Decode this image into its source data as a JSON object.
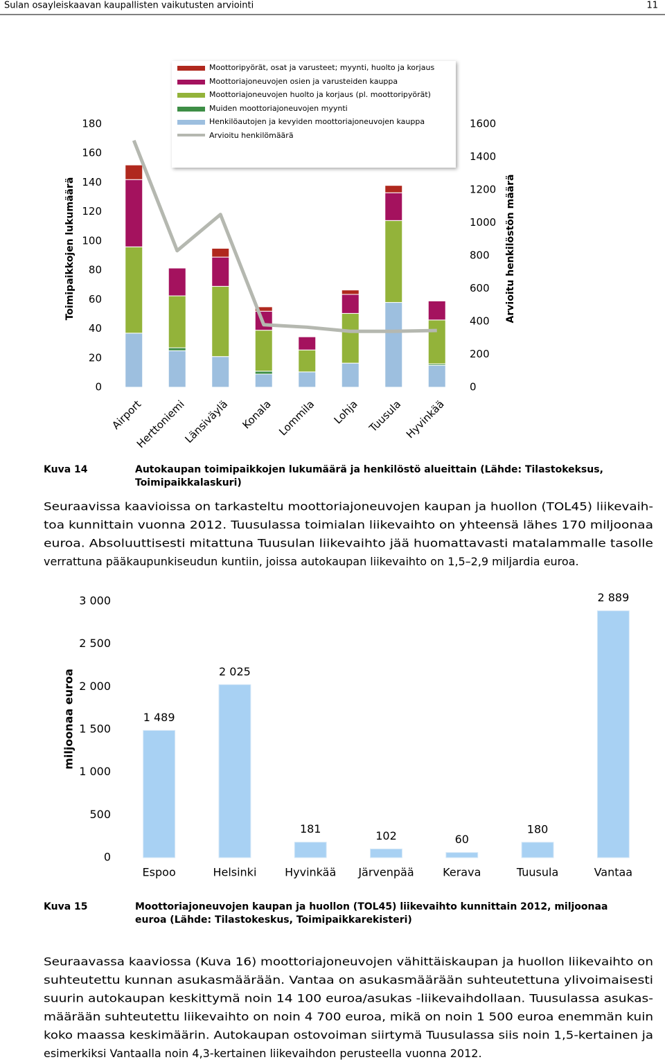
{
  "header": {
    "title": "Sulan osayleiskaavan kaupallisten vaikutusten arviointi",
    "page": "11"
  },
  "chart_data": [
    {
      "type": "stacked-bar-line",
      "categories": [
        "Airport",
        "Herttoniemi",
        "Länsiväylä",
        "Konala",
        "Lommila",
        "Lohja",
        "Tuusula",
        "Hyvinkää"
      ],
      "ylabel": "Toimipaikkojen lukumäärä",
      "y2label": "Arvioitu henkilöstön määrä",
      "ylim": [
        0,
        180
      ],
      "yticks": [
        0,
        20,
        40,
        60,
        80,
        100,
        120,
        140,
        160,
        180
      ],
      "y2lim": [
        0,
        1600
      ],
      "y2ticks": [
        0,
        200,
        400,
        600,
        800,
        1000,
        1200,
        1400,
        1600
      ],
      "series": [
        {
          "name": "Henkilöautojen ja kevyiden moottoriajoneuvojen kauppa",
          "color": "#9dbfdf",
          "values": [
            37,
            25,
            21,
            9,
            10.5,
            16.5,
            58,
            15
          ]
        },
        {
          "name": "Muiden moottoriajoneuvojen myynti",
          "color": "#3e8e46",
          "values": [
            0,
            2,
            0,
            2,
            0,
            0,
            0,
            1
          ]
        },
        {
          "name": "Moottoriajoneuvojen huolto ja korjaus (pl. moottoripyörät)",
          "color": "#93b33a",
          "values": [
            59,
            35.5,
            48,
            28,
            15,
            34,
            56,
            30
          ]
        },
        {
          "name": "Moottoriajoneuvojen osien ja varusteiden kauppa",
          "color": "#a4125e",
          "values": [
            46,
            19,
            20,
            13,
            9,
            13,
            19,
            13
          ]
        },
        {
          "name": "Moottoripyörät, osat ja varusteet; myynti, huolto ja korjaus",
          "color": "#b0281e",
          "values": [
            10,
            0,
            6,
            3,
            0,
            3,
            5,
            0
          ]
        },
        {
          "name": "Arvioitu henkilömäärä",
          "color": "#b5b8b0",
          "axis": "y2",
          "values": [
            1500,
            830,
            1050,
            380,
            365,
            340,
            340,
            345
          ]
        }
      ]
    },
    {
      "type": "bar",
      "categories": [
        "Espoo",
        "Helsinki",
        "Hyvinkää",
        "Järvenpää",
        "Kerava",
        "Tuusula",
        "Vantaa"
      ],
      "values": [
        1489,
        2025,
        181,
        102,
        60,
        180,
        2889
      ],
      "value_labels": [
        "1 489",
        "2 025",
        "181",
        "102",
        "60",
        "180",
        "2 889"
      ],
      "color": "#a8d1f3",
      "ylabel": "miljoonaa euroa",
      "ylim": [
        0,
        3000
      ],
      "yticks": [
        0,
        500,
        {
          "value": 1000,
          "label": "1 000"
        },
        {
          "value": 1500,
          "label": "1 500"
        },
        {
          "value": 2000,
          "label": "2 000"
        },
        {
          "value": 2500,
          "label": "2 500"
        },
        {
          "value": 3000,
          "label": "3 000"
        }
      ]
    }
  ],
  "figure1_caption": {
    "label": "Kuva 14",
    "lines": [
      "Autokaupan toimipaikkojen lukumäärä ja henkilöstö alueittain (Lähde: Tilastokeksus,",
      "Toimipaikkalaskuri)"
    ]
  },
  "paragraph1": [
    "Seuraavissa kaavioissa on tarkasteltu moottoriajoneuvojen kaupan ja huollon (TOL45) liikevaih-",
    "toa kunnittain vuonna 2012. Tuusulassa toimialan liikevaihto on yhteensä lähes 170 miljoonaa",
    "euroa. Absoluuttisesti mitattuna Tuusulan liikevaihto jää huomattavasti matalammalle tasolle",
    "verrattuna pääkaupunkiseudun kuntiin, joissa autokaupan liikevaihto on 1,5–2,9 miljardia euroa."
  ],
  "figure2_caption": {
    "label": "Kuva 15",
    "lines": [
      "Moottoriajoneuvojen kaupan ja huollon (TOL45) liikevaihto kunnittain 2012, miljoonaa",
      "euroa (Lähde: Tilastokeskus, Toimipaikkarekisteri)"
    ]
  },
  "paragraph2": [
    "Seuraavassa kaaviossa (Kuva 16) moottoriajoneuvojen vähittäiskaupan ja huollon liikevaihto on",
    "suhteutettu kunnan asukasmäärään. Vantaa on asukasmäärään suhteutettuna ylivoimaisesti",
    "suurin autokaupan keskittymä noin 14 100 euroa/asukas -liikevaihdollaan. Tuusulassa asukas-",
    "määrään suhteutettu liikevaihto on noin 4 700 euroa, mikä on noin 1 500 euroa enemmän kuin",
    "koko maassa keskimäärin. Autokaupan ostovoiman siirtymä Tuusulassa siis noin 1,5-kertainen ja",
    "esimerkiksi Vantaalla noin 4,3-kertainen liikevaihdon perusteella vuonna 2012."
  ]
}
